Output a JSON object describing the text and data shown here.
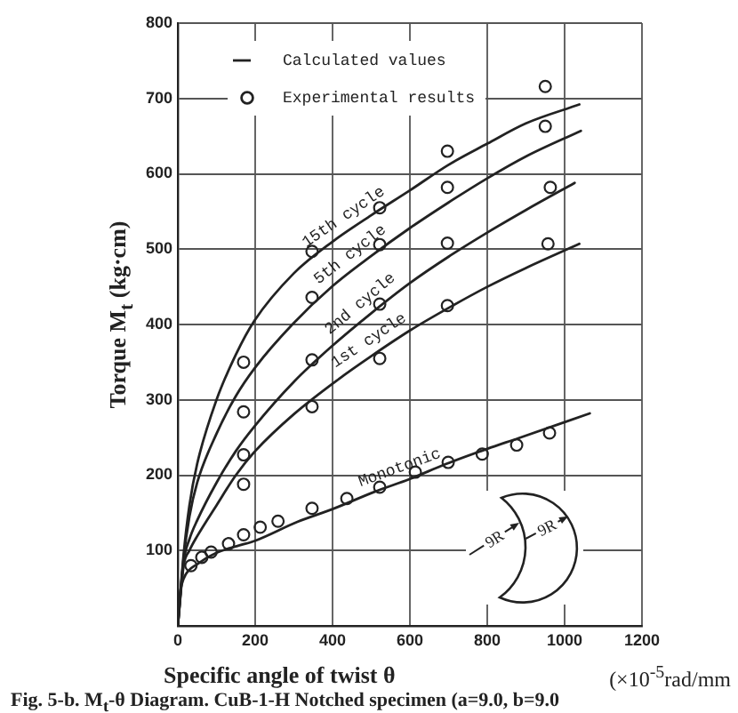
{
  "chart_data": {
    "type": "line",
    "xlabel": "Specific angle of twist θ",
    "ylabel": "Torque M$_{t}$ (kg·cm)",
    "xlim": [
      0,
      1200
    ],
    "ylim": [
      0,
      800
    ],
    "xticks": [
      0,
      200,
      400,
      600,
      800,
      1000,
      1200
    ],
    "yticks": [
      {
        "value": 0,
        "label": null
      },
      100,
      200,
      300,
      400,
      500,
      600,
      700,
      800
    ],
    "grid": true,
    "legend": "top left",
    "marker": "circle",
    "series": [
      {
        "name": "Calculated values",
        "marker": "none",
        "color": "#222222",
        "x": [
          0,
          15,
          30,
          50,
          100,
          150,
          198,
          300,
          400,
          500,
          600,
          700,
          800,
          900,
          1038
        ],
        "values": [
          0,
          95,
          160,
          215,
          300,
          360,
          405,
          468,
          510,
          545,
          578,
          612,
          640,
          667,
          692
        ]
      },
      {
        "marker": "none",
        "color": "#222222",
        "x": [
          0,
          15,
          30,
          50,
          100,
          150,
          200,
          296,
          400,
          500,
          600,
          700,
          800,
          900,
          1042
        ],
        "values": [
          0,
          90,
          145,
          190,
          255,
          305,
          343,
          400,
          451,
          491,
          528,
          562,
          594,
          623,
          657
        ]
      },
      {
        "marker": "none",
        "color": "#222222",
        "x": [
          0,
          15,
          30,
          50,
          100,
          150,
          200,
          300,
          400,
          500,
          600,
          700,
          800,
          900,
          1026
        ],
        "values": [
          0,
          85,
          115,
          140,
          190,
          232,
          266,
          324,
          372,
          415,
          455,
          490,
          522,
          552,
          588
        ]
      },
      {
        "marker": "none",
        "color": "#222222",
        "x": [
          0,
          15,
          30,
          50,
          100,
          150,
          200,
          300,
          417,
          500,
          600,
          700,
          800,
          900,
          1038
        ],
        "values": [
          0,
          80,
          100,
          119,
          160,
          200,
          232,
          281,
          328,
          358,
          392,
          422,
          450,
          475,
          507
        ]
      },
      {
        "marker": "none",
        "color": "#222222",
        "x": [
          0,
          5,
          10,
          20,
          50,
          100,
          154,
          200,
          309,
          400,
          509,
          600,
          694,
          800,
          880,
          1065
        ],
        "values": [
          0,
          40,
          55,
          68,
          82,
          97,
          106,
          113,
          138,
          155,
          178,
          195,
          215,
          235,
          249,
          282
        ]
      },
      {
        "name": "Experimental results",
        "type": "scatter",
        "color": "#222222",
        "x": [
          34,
          62,
          86,
          131,
          170,
          213,
          259,
          347,
          437,
          522,
          614,
          699,
          787,
          876,
          961,
          170,
          170,
          170,
          170,
          347,
          347,
          347,
          347,
          522,
          522,
          522,
          522,
          697,
          697,
          697,
          697,
          950,
          950,
          963,
          957
        ],
        "values": [
          80,
          91,
          98,
          109,
          121,
          131,
          139,
          156,
          169,
          184,
          204,
          217,
          228,
          240,
          256,
          350,
          284,
          227,
          188,
          497,
          436,
          353,
          291,
          555,
          506,
          427,
          355,
          630,
          582,
          508,
          425,
          716,
          663,
          582,
          507
        ]
      }
    ],
    "annotations": [
      {
        "text": "15th cycle",
        "x": 449,
        "y": 527
      },
      {
        "text": "5th cycle",
        "x": 468,
        "y": 478
      },
      {
        "text": "2nd cycle",
        "x": 495,
        "y": 413
      },
      {
        "text": "1st cycle",
        "x": 514,
        "y": 363
      },
      {
        "text": "Monotonic",
        "x": 586,
        "y": 192
      },
      "(×10$^{-5}$rad/mm",
      "9R",
      "9R",
      "Fig. 5-b. M$_{t}$-θ Diagram. CuB-1-H Notched specimen (a=9.0, b=9.0"
    ]
  }
}
